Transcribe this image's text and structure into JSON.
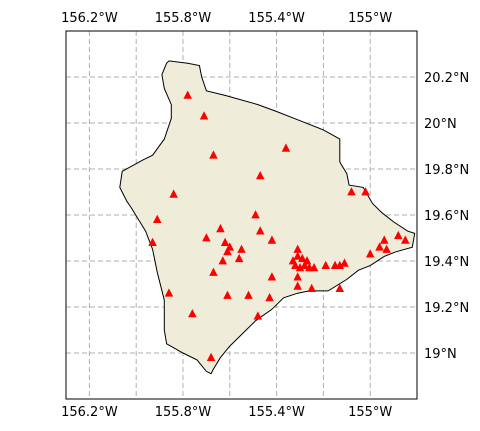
{
  "map": {
    "land_color": "#efedda",
    "coast_color": "#000000",
    "marker_color": "#ff0000",
    "grid_color": "#b0b0b0",
    "extent": {
      "lon": [
        -156.3,
        -154.8
      ],
      "lat": [
        18.8,
        20.4
      ]
    },
    "top_ticks": [
      {
        "lon": -156.2,
        "label": "156.2°W"
      },
      {
        "lon": -155.8,
        "label": "155.8°W"
      },
      {
        "lon": -155.4,
        "label": "155.4°W"
      },
      {
        "lon": -155.0,
        "label": "155°W"
      }
    ],
    "bottom_ticks": [
      {
        "lon": -156.2,
        "label": "156.2°W"
      },
      {
        "lon": -155.8,
        "label": "155.8°W"
      },
      {
        "lon": -155.4,
        "label": "155.4°W"
      },
      {
        "lon": -155.0,
        "label": "155°W"
      }
    ],
    "grid_lons": [
      -156.2,
      -156.0,
      -155.8,
      -155.6,
      -155.4,
      -155.2,
      -155.0,
      -154.8
    ],
    "grid_lats": [
      19.0,
      19.2,
      19.4,
      19.6,
      19.8,
      20.0,
      20.2
    ],
    "lat_ticks": [
      {
        "lat": 20.2,
        "label": "20.2°N"
      },
      {
        "lat": 20.0,
        "label": "20°N"
      },
      {
        "lat": 19.8,
        "label": "19.8°N"
      },
      {
        "lat": 19.6,
        "label": "19.6°N"
      },
      {
        "lat": 19.4,
        "label": "19.4°N"
      },
      {
        "lat": 19.2,
        "label": "19.2°N"
      },
      {
        "lat": 19.0,
        "label": "19°N"
      }
    ],
    "coastline": [
      [
        -155.87,
        20.26
      ],
      [
        -155.86,
        20.27
      ],
      [
        -155.78,
        20.26
      ],
      [
        -155.73,
        20.25
      ],
      [
        -155.72,
        20.2
      ],
      [
        -155.7,
        20.14
      ],
      [
        -155.62,
        20.12
      ],
      [
        -155.48,
        20.08
      ],
      [
        -155.4,
        20.05
      ],
      [
        -155.3,
        20.01
      ],
      [
        -155.2,
        19.97
      ],
      [
        -155.13,
        19.93
      ],
      [
        -155.13,
        19.83
      ],
      [
        -155.1,
        19.78
      ],
      [
        -155.09,
        19.73
      ],
      [
        -155.03,
        19.72
      ],
      [
        -154.99,
        19.65
      ],
      [
        -154.95,
        19.61
      ],
      [
        -154.9,
        19.57
      ],
      [
        -154.84,
        19.53
      ],
      [
        -154.81,
        19.52
      ],
      [
        -154.82,
        19.46
      ],
      [
        -154.89,
        19.44
      ],
      [
        -154.94,
        19.42
      ],
      [
        -155.0,
        19.38
      ],
      [
        -155.05,
        19.36
      ],
      [
        -155.1,
        19.32
      ],
      [
        -155.18,
        19.27
      ],
      [
        -155.26,
        19.27
      ],
      [
        -155.31,
        19.26
      ],
      [
        -155.37,
        19.24
      ],
      [
        -155.42,
        19.19
      ],
      [
        -155.49,
        19.14
      ],
      [
        -155.55,
        19.08
      ],
      [
        -155.6,
        19.03
      ],
      [
        -155.64,
        18.98
      ],
      [
        -155.67,
        18.93
      ],
      [
        -155.68,
        18.91
      ],
      [
        -155.7,
        18.92
      ],
      [
        -155.74,
        18.97
      ],
      [
        -155.8,
        19.0
      ],
      [
        -155.87,
        19.04
      ],
      [
        -155.88,
        19.1
      ],
      [
        -155.88,
        19.23
      ],
      [
        -155.91,
        19.35
      ],
      [
        -155.93,
        19.45
      ],
      [
        -155.96,
        19.53
      ],
      [
        -155.99,
        19.58
      ],
      [
        -156.02,
        19.63
      ],
      [
        -156.04,
        19.66
      ],
      [
        -156.07,
        19.72
      ],
      [
        -156.06,
        19.79
      ],
      [
        -155.97,
        19.84
      ],
      [
        -155.93,
        19.86
      ],
      [
        -155.88,
        19.93
      ],
      [
        -155.85,
        20.02
      ],
      [
        -155.85,
        20.08
      ],
      [
        -155.88,
        20.15
      ],
      [
        -155.89,
        20.21
      ],
      [
        -155.87,
        20.26
      ]
    ],
    "markers": [
      [
        -155.78,
        20.12
      ],
      [
        -155.71,
        20.03
      ],
      [
        -155.67,
        19.86
      ],
      [
        -155.36,
        19.89
      ],
      [
        -155.47,
        19.77
      ],
      [
        -155.84,
        19.69
      ],
      [
        -155.49,
        19.6
      ],
      [
        -155.91,
        19.58
      ],
      [
        -155.64,
        19.54
      ],
      [
        -155.47,
        19.53
      ],
      [
        -155.7,
        19.5
      ],
      [
        -155.42,
        19.49
      ],
      [
        -155.93,
        19.48
      ],
      [
        -155.62,
        19.48
      ],
      [
        -155.6,
        19.46
      ],
      [
        -155.55,
        19.45
      ],
      [
        -155.61,
        19.44
      ],
      [
        -155.31,
        19.45
      ],
      [
        -155.31,
        19.42
      ],
      [
        -155.33,
        19.4
      ],
      [
        -155.29,
        19.41
      ],
      [
        -155.27,
        19.4
      ],
      [
        -155.32,
        19.38
      ],
      [
        -155.3,
        19.37
      ],
      [
        -155.26,
        19.37
      ],
      [
        -155.28,
        19.38
      ],
      [
        -155.24,
        19.37
      ],
      [
        -155.19,
        19.38
      ],
      [
        -155.15,
        19.38
      ],
      [
        -155.13,
        19.38
      ],
      [
        -155.11,
        19.39
      ],
      [
        -155.0,
        19.43
      ],
      [
        -154.96,
        19.46
      ],
      [
        -154.94,
        19.49
      ],
      [
        -154.88,
        19.51
      ],
      [
        -154.85,
        19.49
      ],
      [
        -154.93,
        19.45
      ],
      [
        -155.56,
        19.41
      ],
      [
        -155.63,
        19.4
      ],
      [
        -155.67,
        19.35
      ],
      [
        -155.42,
        19.33
      ],
      [
        -155.31,
        19.33
      ],
      [
        -155.31,
        19.29
      ],
      [
        -155.25,
        19.28
      ],
      [
        -155.13,
        19.28
      ],
      [
        -155.86,
        19.26
      ],
      [
        -155.61,
        19.25
      ],
      [
        -155.52,
        19.25
      ],
      [
        -155.43,
        19.24
      ],
      [
        -155.76,
        19.17
      ],
      [
        -155.48,
        19.16
      ],
      [
        -155.68,
        18.98
      ],
      [
        -155.08,
        19.7
      ],
      [
        -155.02,
        19.7
      ]
    ]
  }
}
